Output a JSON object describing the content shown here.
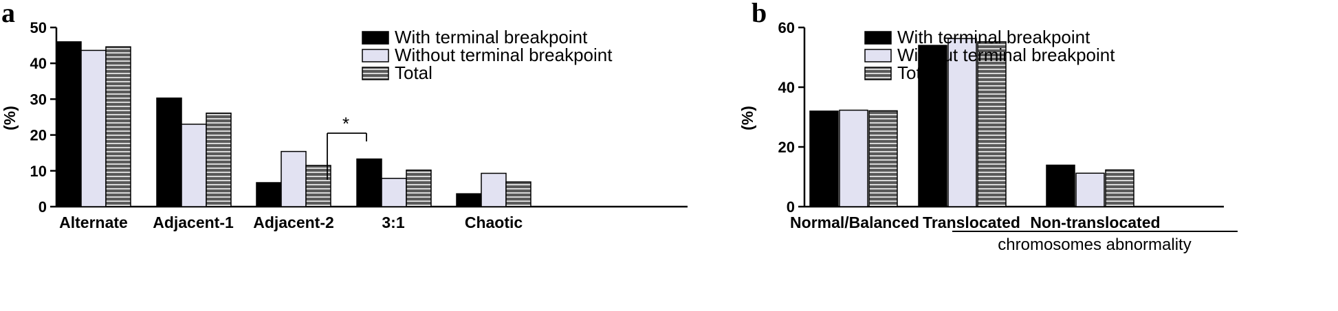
{
  "chart_data": [
    {
      "type": "bar",
      "panel_label": "a",
      "title": "",
      "xlabel": "",
      "ylabel": "(%)",
      "ylim": [
        0,
        50
      ],
      "yticks": [
        0,
        10,
        20,
        30,
        40,
        50
      ],
      "categories": [
        "Alternate",
        "Adjacent-1",
        "Adjacent-2",
        "3:1",
        "Chaotic"
      ],
      "series": [
        {
          "name": "With terminal breakpoint",
          "values": [
            46.0,
            30.3,
            6.7,
            13.3,
            3.6
          ],
          "color": "#000000",
          "pattern": "solid"
        },
        {
          "name": "Without terminal breakpoint",
          "values": [
            43.6,
            23.0,
            15.4,
            7.9,
            9.3
          ],
          "color": "#e2e2f2",
          "pattern": "solid"
        },
        {
          "name": "Total",
          "values": [
            44.6,
            26.1,
            11.5,
            10.2,
            6.9
          ],
          "color": "#5a5a5a",
          "pattern": "horizontal-stripes"
        }
      ],
      "annotations": [
        {
          "text": "*",
          "category_index": 2,
          "between_series": [
            0,
            1
          ]
        }
      ],
      "legend_position": "top-right",
      "grid": false
    },
    {
      "type": "bar",
      "panel_label": "b",
      "title": "",
      "xlabel": "",
      "ylabel": "(%)",
      "ylim": [
        0,
        60
      ],
      "yticks": [
        0,
        20,
        40,
        60
      ],
      "categories": [
        "Normal/Balanced",
        "Translocated",
        "Non-translocated"
      ],
      "group_labels": [
        {
          "text": "chromosomes abnormality",
          "categories": [
            1,
            2
          ]
        }
      ],
      "series": [
        {
          "name": "With terminal breakpoint",
          "values": [
            32.0,
            54.0,
            13.9
          ],
          "color": "#000000",
          "pattern": "solid"
        },
        {
          "name": "Without terminal breakpoint",
          "values": [
            32.3,
            56.3,
            11.2
          ],
          "color": "#e2e2f2",
          "pattern": "solid"
        },
        {
          "name": "Total",
          "values": [
            32.1,
            55.2,
            12.3
          ],
          "color": "#5a5a5a",
          "pattern": "horizontal-stripes"
        }
      ],
      "legend_position": "top-right",
      "grid": false
    }
  ]
}
